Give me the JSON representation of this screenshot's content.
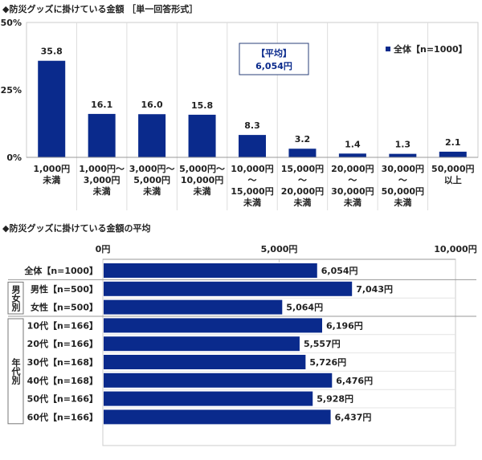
{
  "chart_data": [
    {
      "type": "bar",
      "title": "◆防災グッズに掛けている金額 ［単一回答形式］",
      "categories": [
        "1,000円\n未満",
        "1,000円～\n3,000円\n未満",
        "3,000円～\n5,000円\n未満",
        "5,000円～\n10,000円\n未満",
        "10,000円\n～\n15,000円\n未満",
        "15,000円\n～\n20,000円\n未満",
        "20,000円\n～\n30,000円\n未満",
        "30,000円\n～\n50,000円\n未満",
        "50,000円\n以上"
      ],
      "series": [
        {
          "name": "全体【n=1000】",
          "values": [
            35.8,
            16.1,
            16.0,
            15.8,
            8.3,
            3.2,
            1.4,
            1.3,
            2.1
          ]
        }
      ],
      "ylim": [
        0,
        50
      ],
      "yticks": [
        "0%",
        "25%",
        "50%"
      ],
      "grid": "vertical category separators",
      "legend": "top-right",
      "annotation": {
        "line1": "【平均】",
        "line2": "6,054円"
      },
      "bar_color": "#0a2a8c"
    },
    {
      "type": "bar",
      "orientation": "horizontal",
      "title": "◆防災グッズに掛けている金額の平均",
      "categories": [
        "全体【n=1000】",
        "男性【n=500】",
        "女性【n=500】",
        "10代【n=166】",
        "20代【n=166】",
        "30代【n=168】",
        "40代【n=168】",
        "50代【n=166】",
        "60代【n=166】"
      ],
      "values": [
        6054,
        7043,
        5064,
        6196,
        5557,
        5726,
        6476,
        5928,
        6437
      ],
      "value_labels": [
        "6,054円",
        "7,043円",
        "5,064円",
        "6,196円",
        "5,557円",
        "5,726円",
        "6,476円",
        "5,928円",
        "6,437円"
      ],
      "xlim": [
        0,
        10000
      ],
      "xticks": [
        "0円",
        "5,000円",
        "10,000円"
      ],
      "groups": [
        {
          "label": "男女別",
          "rows": [
            1,
            2
          ]
        },
        {
          "label": "年代別",
          "rows": [
            3,
            4,
            5,
            6,
            7,
            8
          ]
        }
      ],
      "bar_color": "#0a2a8c"
    }
  ]
}
